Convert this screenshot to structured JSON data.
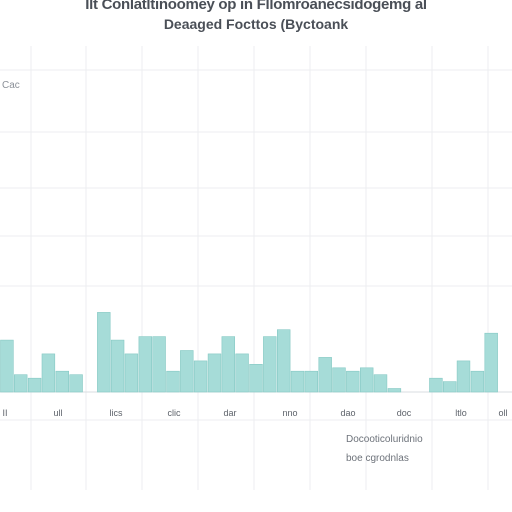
{
  "chart_data": {
    "type": "bar",
    "title": "Ilt Conlatltinoomey op in Fllomroanecsidogemg al",
    "subtitle": "Deaaged Focttos (Byctoank",
    "ylabel": "Cac",
    "xlabel": "",
    "ylim": [
      0,
      100
    ],
    "grid": true,
    "legend": "none",
    "bar_color": "#a6dcd8",
    "bar_edge_color": "#86c9c4",
    "x": [
      0.5,
      1.5,
      2.5,
      3.5,
      4.5,
      5.5,
      7.5,
      8.5,
      9.5,
      10.5,
      11.5,
      12.5,
      13.5,
      14.5,
      15.5,
      16.5,
      17.5,
      18.5,
      19.5,
      20.5,
      21.5,
      22.5,
      23.5,
      24.5,
      25.5,
      26.5,
      27.5,
      28.5,
      31.5,
      32.5,
      33.5,
      34.5,
      35.5
    ],
    "values": [
      15,
      5,
      4,
      11,
      6,
      5,
      23,
      15,
      11,
      16,
      16,
      6,
      12,
      9,
      11,
      16,
      11,
      8,
      16,
      18,
      6,
      6,
      10,
      7,
      6,
      7,
      5,
      1,
      4,
      3,
      9,
      6,
      17
    ],
    "tick_labels": [
      "II",
      "ull",
      "lics",
      "clic",
      "dar",
      "nno",
      "dao",
      "doc",
      "ltlo",
      "oll"
    ],
    "notes": [
      "Docooticoluridnio",
      "boe cgrodnlas"
    ]
  }
}
